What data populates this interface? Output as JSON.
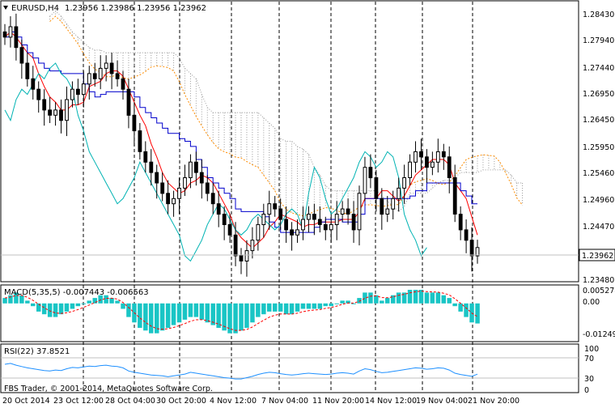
{
  "header": {
    "symbol_timeframe": "EURUSD,H4",
    "ohlc": "1.23956 1.23986 1.23956 1.23962",
    "menu_icon": "triangle-down-icon"
  },
  "price_scale": [
    "1.28430",
    "1.27940",
    "1.27440",
    "1.26950",
    "1.26450",
    "1.25950",
    "1.25460",
    "1.24960",
    "1.24470",
    "1.23962",
    "1.23480"
  ],
  "current_price": "1.23962",
  "macd": {
    "label": "MACD(5,35,5) -0.007443 -0.006563",
    "scale": [
      "0.005278",
      "0.00",
      "-0.012495"
    ]
  },
  "rsi": {
    "label": "RSI(22) 37.8521",
    "scale": [
      "100",
      "70",
      "30",
      "0"
    ]
  },
  "time_axis": [
    "20 Oct 2014",
    "23 Oct 12:00",
    "28 Oct 04:00",
    "30 Oct 20:00",
    "4 Nov 12:00",
    "7 Nov 04:00",
    "11 Nov 20:00",
    "14 Nov 12:00",
    "19 Nov 04:00",
    "21 Nov 20:00"
  ],
  "copyright": "FBS Trader, © 2001-2014, MetaQuotes Software Corp.",
  "colors": {
    "candle": "#000000",
    "tenkan": "#ff0000",
    "kijun": "#0000cc",
    "chikou": "#00b3b3",
    "senkou_a": "#ff8c00",
    "senkou_b": "#999999",
    "macd_hist": "#19c5c5",
    "macd_signal": "#ff0000",
    "rsi": "#1e90ff",
    "grid_vline": "#000000"
  },
  "chart_data": {
    "type": "candlestick",
    "symbol": "EURUSD",
    "timeframe": "H4",
    "price_ylim": [
      1.2335,
      1.2865
    ],
    "last_price": 1.23962,
    "close_series": [
      1.28,
      1.282,
      1.278,
      1.275,
      1.272,
      1.27,
      1.268,
      1.266,
      1.265,
      1.266,
      1.264,
      1.268,
      1.27,
      1.269,
      1.271,
      1.273,
      1.272,
      1.274,
      1.275,
      1.273,
      1.272,
      1.27,
      1.265,
      1.262,
      1.258,
      1.256,
      1.254,
      1.252,
      1.25,
      1.248,
      1.249,
      1.251,
      1.253,
      1.256,
      1.254,
      1.252,
      1.25,
      1.248,
      1.246,
      1.244,
      1.242,
      1.238,
      1.237,
      1.239,
      1.241,
      1.244,
      1.246,
      1.248,
      1.247,
      1.245,
      1.243,
      1.242,
      1.243,
      1.245,
      1.246,
      1.245,
      1.244,
      1.243,
      1.244,
      1.246,
      1.247,
      1.246,
      1.243,
      1.25,
      1.255,
      1.253,
      1.249,
      1.246,
      1.247,
      1.249,
      1.251,
      1.253,
      1.256,
      1.258,
      1.257,
      1.255,
      1.256,
      1.258,
      1.257,
      1.253,
      1.246,
      1.243,
      1.241,
      1.238,
      1.2396
    ],
    "macd_hist": [
      0.002,
      0.003,
      0.004,
      0.003,
      0.001,
      -0.001,
      -0.003,
      -0.004,
      -0.005,
      -0.005,
      -0.004,
      -0.003,
      -0.002,
      -0.001,
      0.0,
      0.001,
      0.002,
      0.003,
      0.003,
      0.002,
      0.001,
      -0.002,
      -0.005,
      -0.007,
      -0.009,
      -0.01,
      -0.011,
      -0.011,
      -0.01,
      -0.009,
      -0.008,
      -0.007,
      -0.006,
      -0.005,
      -0.005,
      -0.006,
      -0.007,
      -0.008,
      -0.009,
      -0.01,
      -0.011,
      -0.011,
      -0.01,
      -0.009,
      -0.007,
      -0.005,
      -0.004,
      -0.003,
      -0.003,
      -0.003,
      -0.004,
      -0.004,
      -0.003,
      -0.002,
      -0.002,
      -0.002,
      -0.002,
      -0.001,
      -0.001,
      0.0,
      0.001,
      0.001,
      0.0,
      0.002,
      0.004,
      0.004,
      0.003,
      0.001,
      0.002,
      0.003,
      0.004,
      0.004,
      0.005,
      0.005,
      0.005,
      0.004,
      0.004,
      0.004,
      0.003,
      0.002,
      -0.001,
      -0.003,
      -0.005,
      -0.007,
      -0.0074
    ],
    "macd_ylim": [
      -0.0135,
      0.0062
    ],
    "rsi_series": [
      60,
      62,
      58,
      55,
      52,
      50,
      48,
      46,
      45,
      47,
      46,
      50,
      53,
      52,
      54,
      56,
      55,
      57,
      58,
      56,
      55,
      52,
      45,
      42,
      40,
      38,
      36,
      35,
      34,
      32,
      34,
      36,
      38,
      42,
      40,
      38,
      36,
      34,
      32,
      30,
      29,
      27,
      27,
      30,
      33,
      37,
      40,
      42,
      41,
      39,
      37,
      36,
      37,
      39,
      40,
      39,
      38,
      37,
      38,
      40,
      41,
      40,
      38,
      45,
      50,
      48,
      44,
      41,
      42,
      44,
      46,
      48,
      50,
      52,
      51,
      49,
      50,
      52,
      51,
      47,
      40,
      37,
      35,
      33,
      37.85
    ],
    "rsi_ylim": [
      0,
      100
    ],
    "rsi_levels": [
      70,
      30
    ],
    "x_ticks": [
      "20 Oct 2014",
      "23 Oct 12:00",
      "28 Oct 04:00",
      "30 Oct 20:00",
      "4 Nov 12:00",
      "7 Nov 04:00",
      "11 Nov 20:00",
      "14 Nov 12:00",
      "19 Nov 04:00",
      "21 Nov 20:00"
    ],
    "grid": "vertical-dashed"
  }
}
